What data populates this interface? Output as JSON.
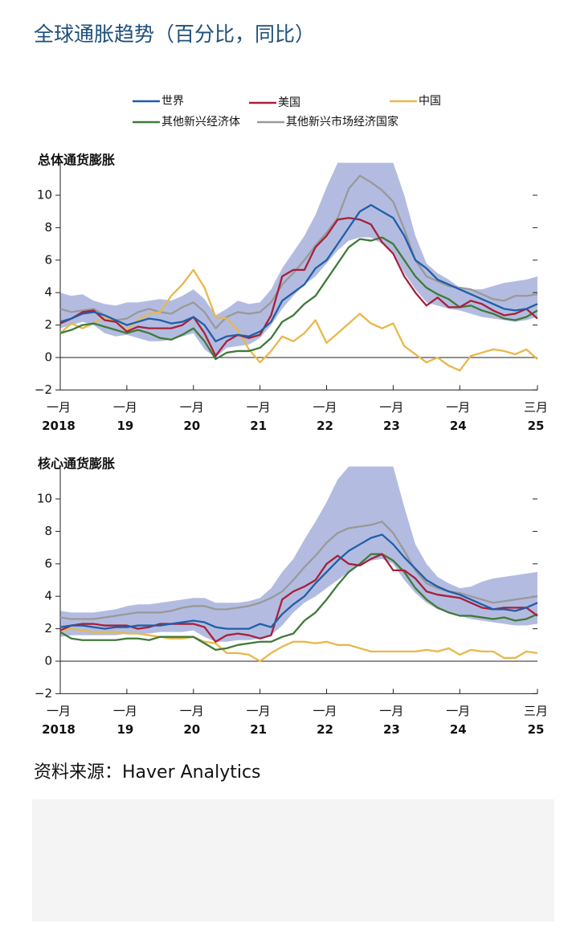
{
  "title": "全球通胀趋势（百分比，同比）",
  "source": "资料来源：Haver Analytics",
  "chart_data": [
    {
      "type": "line",
      "title": "总体通货膨胀",
      "categories": [
        "一月",
        null,
        null,
        null,
        null,
        null,
        "一月",
        null,
        null,
        null,
        null,
        null,
        "一月",
        null,
        null,
        null,
        null,
        null,
        "一月",
        null,
        null,
        null,
        null,
        null,
        "一月",
        null,
        null,
        null,
        null,
        null,
        "一月",
        null,
        null,
        null,
        null,
        null,
        "一月",
        null,
        null,
        null,
        null,
        null,
        null,
        "三月"
      ],
      "year_labels": [
        "2018",
        null,
        null,
        null,
        null,
        null,
        "19",
        null,
        null,
        null,
        null,
        null,
        "20",
        null,
        null,
        null,
        null,
        null,
        "21",
        null,
        null,
        null,
        null,
        null,
        "22",
        null,
        null,
        null,
        null,
        null,
        "23",
        null,
        null,
        null,
        null,
        null,
        "24",
        null,
        null,
        null,
        null,
        null,
        null,
        "25"
      ],
      "ylim": [
        -2,
        12
      ],
      "yticks": [
        {
          "value": -2,
          "label": "−2"
        },
        0,
        2,
        4,
        6,
        8,
        10
      ],
      "band": {
        "color": "#b3bce0",
        "low": [
          1.8,
          2.0,
          2.2,
          2.0,
          1.5,
          1.3,
          1.4,
          1.2,
          1.0,
          1.0,
          1.1,
          1.3,
          1.5,
          0.5,
          0.0,
          0.6,
          0.7,
          0.8,
          1.2,
          2.0,
          3.0,
          3.8,
          4.5,
          5.0,
          5.8,
          6.6,
          7.2,
          7.4,
          7.4,
          7.0,
          6.5,
          5.2,
          4.2,
          3.4,
          3.2,
          3.0,
          2.9,
          2.7,
          2.5,
          2.4,
          2.3,
          2.2,
          2.3,
          2.5
        ],
        "high": [
          4.0,
          3.8,
          3.9,
          3.5,
          3.3,
          3.2,
          3.4,
          3.4,
          3.5,
          3.6,
          3.5,
          3.8,
          4.2,
          3.6,
          2.6,
          3.0,
          3.5,
          3.3,
          3.4,
          4.2,
          5.5,
          6.5,
          7.5,
          8.8,
          10.5,
          12,
          12,
          12,
          12,
          12,
          12,
          10.0,
          7.5,
          5.8,
          5.2,
          4.8,
          4.3,
          4.2,
          4.2,
          4.4,
          4.6,
          4.7,
          4.8,
          5.0
        ]
      },
      "series": [
        {
          "name": "其他新兴市场经济国家",
          "color": "#999999",
          "values": [
            3.0,
            2.8,
            2.9,
            3.0,
            2.6,
            2.3,
            2.4,
            2.8,
            3.0,
            2.8,
            2.7,
            3.1,
            3.4,
            2.8,
            1.8,
            2.5,
            2.8,
            2.7,
            2.8,
            3.4,
            4.5,
            5.2,
            6.0,
            6.9,
            7.7,
            8.6,
            10.4,
            11.2,
            10.8,
            10.3,
            9.6,
            7.9,
            6.0,
            5.0,
            4.7,
            4.4,
            4.3,
            4.2,
            3.9,
            3.6,
            3.5,
            3.8,
            3.8,
            3.9
          ]
        },
        {
          "name": "中国",
          "color": "#e8b84a",
          "values": [
            1.5,
            2.1,
            1.8,
            2.1,
            2.5,
            2.2,
            1.7,
            2.3,
            2.7,
            2.8,
            3.8,
            4.5,
            5.4,
            4.3,
            2.5,
            2.4,
            1.7,
            0.5,
            -0.3,
            0.4,
            1.3,
            1.0,
            1.5,
            2.3,
            0.9,
            1.5,
            2.1,
            2.7,
            2.1,
            1.8,
            2.1,
            0.7,
            0.2,
            -0.3,
            0.0,
            -0.5,
            -0.8,
            0.1,
            0.3,
            0.5,
            0.4,
            0.2,
            0.5,
            -0.1
          ]
        },
        {
          "name": "其他新兴经济体",
          "color": "#3f7a3a",
          "values": [
            1.5,
            1.7,
            2.0,
            2.1,
            1.9,
            1.7,
            1.5,
            1.7,
            1.5,
            1.2,
            1.1,
            1.4,
            1.8,
            1.0,
            -0.1,
            0.3,
            0.4,
            0.4,
            0.6,
            1.2,
            2.2,
            2.6,
            3.3,
            3.8,
            4.8,
            5.8,
            6.8,
            7.3,
            7.2,
            7.4,
            7.0,
            6.0,
            5.0,
            4.3,
            3.9,
            3.6,
            3.1,
            3.2,
            2.9,
            2.7,
            2.4,
            2.3,
            2.5,
            2.9
          ]
        },
        {
          "name": "美国",
          "color": "#a8203a",
          "values": [
            2.1,
            2.4,
            2.8,
            2.9,
            2.3,
            2.2,
            1.6,
            1.9,
            1.8,
            1.8,
            1.8,
            2.0,
            2.5,
            1.5,
            0.1,
            1.0,
            1.4,
            1.2,
            1.4,
            2.6,
            5.0,
            5.4,
            5.4,
            6.8,
            7.5,
            8.5,
            8.6,
            8.5,
            8.2,
            7.1,
            6.4,
            5.0,
            4.0,
            3.2,
            3.7,
            3.1,
            3.1,
            3.5,
            3.3,
            2.9,
            2.6,
            2.7,
            3.0,
            2.4
          ]
        },
        {
          "name": "世界",
          "color": "#1f5fa8",
          "values": [
            2.2,
            2.4,
            2.7,
            2.8,
            2.6,
            2.3,
            2.0,
            2.2,
            2.4,
            2.3,
            2.1,
            2.2,
            2.5,
            2.0,
            1.0,
            1.3,
            1.4,
            1.3,
            1.6,
            2.2,
            3.5,
            4.0,
            4.5,
            5.5,
            6.0,
            7.0,
            8.0,
            9.0,
            9.4,
            9.0,
            8.6,
            7.5,
            6.0,
            5.5,
            4.8,
            4.5,
            4.2,
            3.9,
            3.6,
            3.3,
            3.0,
            2.9,
            3.0,
            3.3
          ]
        }
      ]
    },
    {
      "type": "line",
      "title": "核心通货膨胀",
      "categories": [
        "一月",
        null,
        null,
        null,
        null,
        null,
        "一月",
        null,
        null,
        null,
        null,
        null,
        "一月",
        null,
        null,
        null,
        null,
        null,
        "一月",
        null,
        null,
        null,
        null,
        null,
        "一月",
        null,
        null,
        null,
        null,
        null,
        "一月",
        null,
        null,
        null,
        null,
        null,
        "一月",
        null,
        null,
        null,
        null,
        null,
        null,
        "三月"
      ],
      "year_labels": [
        "2018",
        null,
        null,
        null,
        null,
        null,
        "19",
        null,
        null,
        null,
        null,
        null,
        "20",
        null,
        null,
        null,
        null,
        null,
        "21",
        null,
        null,
        null,
        null,
        null,
        "22",
        null,
        null,
        null,
        null,
        null,
        "23",
        null,
        null,
        null,
        null,
        null,
        "24",
        null,
        null,
        null,
        null,
        null,
        null,
        "25"
      ],
      "ylim": [
        -2,
        12
      ],
      "yticks": [
        {
          "value": -2,
          "label": "−2"
        },
        0,
        2,
        4,
        6,
        8,
        10
      ],
      "band": {
        "color": "#b3bce0",
        "low": [
          1.5,
          1.6,
          1.6,
          1.6,
          1.6,
          1.6,
          1.7,
          1.7,
          1.7,
          1.8,
          1.8,
          1.8,
          1.9,
          1.5,
          1.2,
          1.2,
          1.3,
          1.3,
          1.4,
          1.6,
          2.2,
          3.0,
          3.6,
          4.0,
          4.5,
          5.0,
          5.5,
          6.0,
          6.2,
          6.3,
          6.0,
          5.0,
          4.2,
          3.6,
          3.2,
          3.0,
          2.8,
          2.6,
          2.5,
          2.4,
          2.3,
          2.2,
          2.2,
          2.3
        ],
        "high": [
          3.1,
          3.0,
          3.0,
          3.0,
          3.1,
          3.2,
          3.4,
          3.5,
          3.5,
          3.6,
          3.7,
          3.8,
          3.9,
          3.9,
          3.6,
          3.6,
          3.6,
          3.7,
          3.9,
          4.5,
          5.5,
          6.3,
          7.5,
          8.6,
          9.8,
          11.2,
          12,
          12,
          12,
          12,
          12,
          9.5,
          7.2,
          6.0,
          5.2,
          4.8,
          4.5,
          4.6,
          4.9,
          5.1,
          5.2,
          5.3,
          5.4,
          5.5
        ]
      },
      "series": [
        {
          "name": "其他新兴市场经济国家",
          "color": "#999999",
          "values": [
            2.7,
            2.6,
            2.6,
            2.6,
            2.7,
            2.8,
            2.9,
            3.0,
            3.0,
            3.0,
            3.1,
            3.3,
            3.4,
            3.4,
            3.2,
            3.2,
            3.3,
            3.4,
            3.6,
            3.9,
            4.3,
            5.0,
            5.8,
            6.5,
            7.3,
            7.9,
            8.2,
            8.3,
            8.4,
            8.6,
            7.9,
            6.8,
            5.6,
            4.8,
            4.5,
            4.3,
            4.2,
            4.0,
            3.8,
            3.6,
            3.7,
            3.8,
            3.9,
            4.0
          ]
        },
        {
          "name": "中国",
          "color": "#e8b84a",
          "values": [
            1.9,
            2.0,
            1.9,
            1.8,
            1.8,
            1.8,
            1.7,
            1.7,
            1.6,
            1.5,
            1.4,
            1.4,
            1.5,
            1.2,
            1.1,
            0.5,
            0.5,
            0.4,
            0.0,
            0.5,
            0.9,
            1.2,
            1.2,
            1.1,
            1.2,
            1.0,
            1.0,
            0.8,
            0.6,
            0.6,
            0.6,
            0.6,
            0.6,
            0.7,
            0.6,
            0.8,
            0.4,
            0.7,
            0.6,
            0.6,
            0.2,
            0.2,
            0.6,
            0.5
          ]
        },
        {
          "name": "其他新兴经济体",
          "color": "#3f7a3a",
          "values": [
            1.8,
            1.4,
            1.3,
            1.3,
            1.3,
            1.3,
            1.4,
            1.4,
            1.3,
            1.5,
            1.5,
            1.5,
            1.5,
            1.1,
            0.7,
            0.8,
            1.0,
            1.1,
            1.2,
            1.2,
            1.5,
            1.7,
            2.5,
            3.0,
            3.8,
            4.7,
            5.5,
            6.0,
            6.6,
            6.6,
            6.2,
            5.5,
            4.5,
            3.8,
            3.3,
            3.0,
            2.8,
            2.8,
            2.7,
            2.6,
            2.7,
            2.5,
            2.6,
            2.9
          ]
        },
        {
          "name": "美国",
          "color": "#a8203a",
          "values": [
            1.9,
            2.2,
            2.3,
            2.3,
            2.2,
            2.2,
            2.2,
            2.0,
            2.1,
            2.3,
            2.3,
            2.3,
            2.3,
            2.1,
            1.2,
            1.6,
            1.7,
            1.6,
            1.4,
            1.6,
            3.8,
            4.3,
            4.6,
            5.0,
            6.0,
            6.5,
            6.0,
            5.9,
            6.3,
            6.6,
            5.6,
            5.6,
            5.1,
            4.3,
            4.1,
            4.0,
            3.9,
            3.6,
            3.3,
            3.2,
            3.3,
            3.3,
            3.3,
            2.8
          ]
        },
        {
          "name": "世界",
          "color": "#1f5fa8",
          "values": [
            2.1,
            2.2,
            2.2,
            2.1,
            2.0,
            2.1,
            2.1,
            2.2,
            2.2,
            2.2,
            2.3,
            2.4,
            2.5,
            2.4,
            2.1,
            2.0,
            2.0,
            2.0,
            2.3,
            2.1,
            2.9,
            3.5,
            4.0,
            4.8,
            5.5,
            6.2,
            6.8,
            7.2,
            7.6,
            7.8,
            7.2,
            6.4,
            5.7,
            5.0,
            4.6,
            4.3,
            4.1,
            3.8,
            3.5,
            3.2,
            3.2,
            3.1,
            3.3,
            3.6
          ]
        }
      ]
    }
  ]
}
